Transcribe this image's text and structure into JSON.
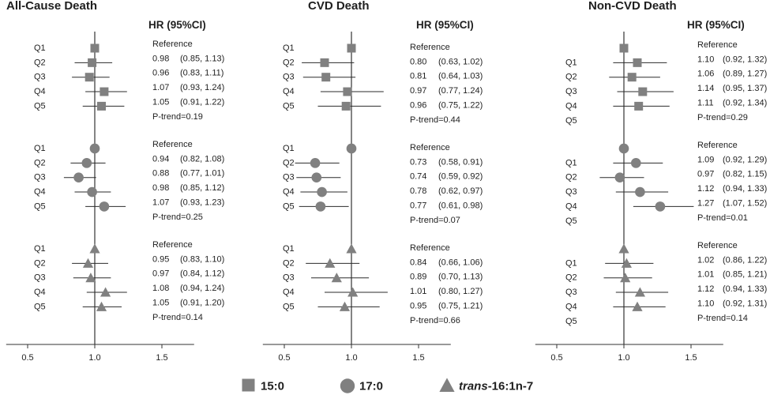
{
  "chart_data": [
    {
      "type": "scatter",
      "title": "All-Cause Death",
      "header": "HR (95%CI)",
      "xlim": [
        0.34,
        1.74
      ],
      "xticks": [
        0.5,
        1.0,
        1.5
      ],
      "xtick_labels": [
        "0.5",
        "1.0",
        "1.5"
      ],
      "reference_line": 1.0,
      "groups": [
        {
          "marker": "square",
          "rows": [
            {
              "q": "Q1",
              "hr": 1.0,
              "text": "Reference"
            },
            {
              "q": "Q2",
              "hr": 0.98,
              "lo": 0.85,
              "hi": 1.13
            },
            {
              "q": "Q3",
              "hr": 0.96,
              "lo": 0.83,
              "hi": 1.11
            },
            {
              "q": "Q4",
              "hr": 1.07,
              "lo": 0.93,
              "hi": 1.24
            },
            {
              "q": "Q5",
              "hr": 1.05,
              "lo": 0.91,
              "hi": 1.22
            }
          ],
          "p_trend": "P-trend=0.19"
        },
        {
          "marker": "circle",
          "rows": [
            {
              "q": "Q1",
              "hr": 1.0,
              "text": "Reference"
            },
            {
              "q": "Q2",
              "hr": 0.94,
              "lo": 0.82,
              "hi": 1.08
            },
            {
              "q": "Q3",
              "hr": 0.88,
              "lo": 0.77,
              "hi": 1.01
            },
            {
              "q": "Q4",
              "hr": 0.98,
              "lo": 0.85,
              "hi": 1.12
            },
            {
              "q": "Q5",
              "hr": 1.07,
              "lo": 0.93,
              "hi": 1.23
            }
          ],
          "p_trend": "P-trend=0.25"
        },
        {
          "marker": "triangle",
          "rows": [
            {
              "q": "Q1",
              "hr": 1.0,
              "text": "Reference"
            },
            {
              "q": "Q2",
              "hr": 0.95,
              "lo": 0.83,
              "hi": 1.1
            },
            {
              "q": "Q3",
              "hr": 0.97,
              "lo": 0.84,
              "hi": 1.12
            },
            {
              "q": "Q4",
              "hr": 1.08,
              "lo": 0.94,
              "hi": 1.24
            },
            {
              "q": "Q5",
              "hr": 1.05,
              "lo": 0.91,
              "hi": 1.2
            }
          ],
          "p_trend": "P-trend=0.14"
        }
      ]
    },
    {
      "type": "scatter",
      "title": "CVD Death",
      "header": "HR (95%CI)",
      "xlim": [
        0.34,
        1.74
      ],
      "xticks": [
        0.5,
        1.0,
        1.5
      ],
      "xtick_labels": [
        "0.5",
        "1.0",
        "1.5"
      ],
      "reference_line": 1.0,
      "groups": [
        {
          "marker": "square",
          "rows": [
            {
              "q": "Q1",
              "hr": 1.0,
              "text": "Reference"
            },
            {
              "q": "Q2",
              "hr": 0.8,
              "lo": 0.63,
              "hi": 1.02
            },
            {
              "q": "Q3",
              "hr": 0.81,
              "lo": 0.64,
              "hi": 1.03
            },
            {
              "q": "Q4",
              "hr": 0.97,
              "lo": 0.77,
              "hi": 1.24
            },
            {
              "q": "Q5",
              "hr": 0.96,
              "lo": 0.75,
              "hi": 1.22
            }
          ],
          "p_trend": "P-trend=0.44"
        },
        {
          "marker": "circle",
          "rows": [
            {
              "q": "Q1",
              "hr": 1.0,
              "text": "Reference"
            },
            {
              "q": "Q2",
              "hr": 0.73,
              "lo": 0.58,
              "hi": 0.91
            },
            {
              "q": "Q3",
              "hr": 0.74,
              "lo": 0.59,
              "hi": 0.92
            },
            {
              "q": "Q4",
              "hr": 0.78,
              "lo": 0.62,
              "hi": 0.97
            },
            {
              "q": "Q5",
              "hr": 0.77,
              "lo": 0.61,
              "hi": 0.98
            }
          ],
          "p_trend": "P-trend=0.07"
        },
        {
          "marker": "triangle",
          "rows": [
            {
              "q": "Q1",
              "hr": 1.0,
              "text": "Reference"
            },
            {
              "q": "Q2",
              "hr": 0.84,
              "lo": 0.66,
              "hi": 1.06
            },
            {
              "q": "Q3",
              "hr": 0.89,
              "lo": 0.7,
              "hi": 1.13
            },
            {
              "q": "Q4",
              "hr": 1.01,
              "lo": 0.8,
              "hi": 1.27
            },
            {
              "q": "Q5",
              "hr": 0.95,
              "lo": 0.75,
              "hi": 1.21
            }
          ],
          "p_trend": "P-trend=0.66"
        }
      ]
    },
    {
      "type": "scatter",
      "title": "Non-CVD Death",
      "header": "HR (95%CI)",
      "xlim": [
        0.34,
        1.74
      ],
      "xticks": [
        0.5,
        1.0,
        1.5
      ],
      "xtick_labels": [
        "0.5",
        "1.0",
        "1.5"
      ],
      "reference_line": 1.0,
      "groups": [
        {
          "marker": "square",
          "rows": [
            {
              "q": "Q1",
              "hr": 1.0,
              "text": "Reference"
            },
            {
              "q": "Q2",
              "hr": 1.1,
              "lo": 0.92,
              "hi": 1.32
            },
            {
              "q": "Q3",
              "hr": 1.06,
              "lo": 0.89,
              "hi": 1.27
            },
            {
              "q": "Q4",
              "hr": 1.14,
              "lo": 0.95,
              "hi": 1.37
            },
            {
              "q": "Q5",
              "hr": 1.11,
              "lo": 0.92,
              "hi": 1.34
            }
          ],
          "p_trend": "P-trend=0.29"
        },
        {
          "marker": "circle",
          "rows": [
            {
              "q": "Q1",
              "hr": 1.0,
              "text": "Reference"
            },
            {
              "q": "Q2",
              "hr": 1.09,
              "lo": 0.92,
              "hi": 1.29
            },
            {
              "q": "Q3",
              "hr": 0.97,
              "lo": 0.82,
              "hi": 1.15
            },
            {
              "q": "Q4",
              "hr": 1.12,
              "lo": 0.94,
              "hi": 1.33
            },
            {
              "q": "Q5",
              "hr": 1.27,
              "lo": 1.07,
              "hi": 1.52
            }
          ],
          "p_trend": "P-trend=0.01"
        },
        {
          "marker": "triangle",
          "rows": [
            {
              "q": "Q1",
              "hr": 1.0,
              "text": "Reference"
            },
            {
              "q": "Q2",
              "hr": 1.02,
              "lo": 0.86,
              "hi": 1.22
            },
            {
              "q": "Q3",
              "hr": 1.01,
              "lo": 0.85,
              "hi": 1.21
            },
            {
              "q": "Q4",
              "hr": 1.12,
              "lo": 0.94,
              "hi": 1.33
            },
            {
              "q": "Q5",
              "hr": 1.1,
              "lo": 0.92,
              "hi": 1.31
            }
          ],
          "p_trend": "P-trend=0.14"
        }
      ]
    }
  ],
  "legend": [
    {
      "marker": "square",
      "label": "15:0"
    },
    {
      "marker": "circle",
      "label": "17:0"
    },
    {
      "marker": "triangle",
      "label_italic": "trans",
      "label": "-16:1n-7"
    }
  ],
  "colors": {
    "marker": "#808080",
    "interval_line": "#2b2b2b",
    "reference_line": "#333333",
    "axis": "#333333"
  }
}
